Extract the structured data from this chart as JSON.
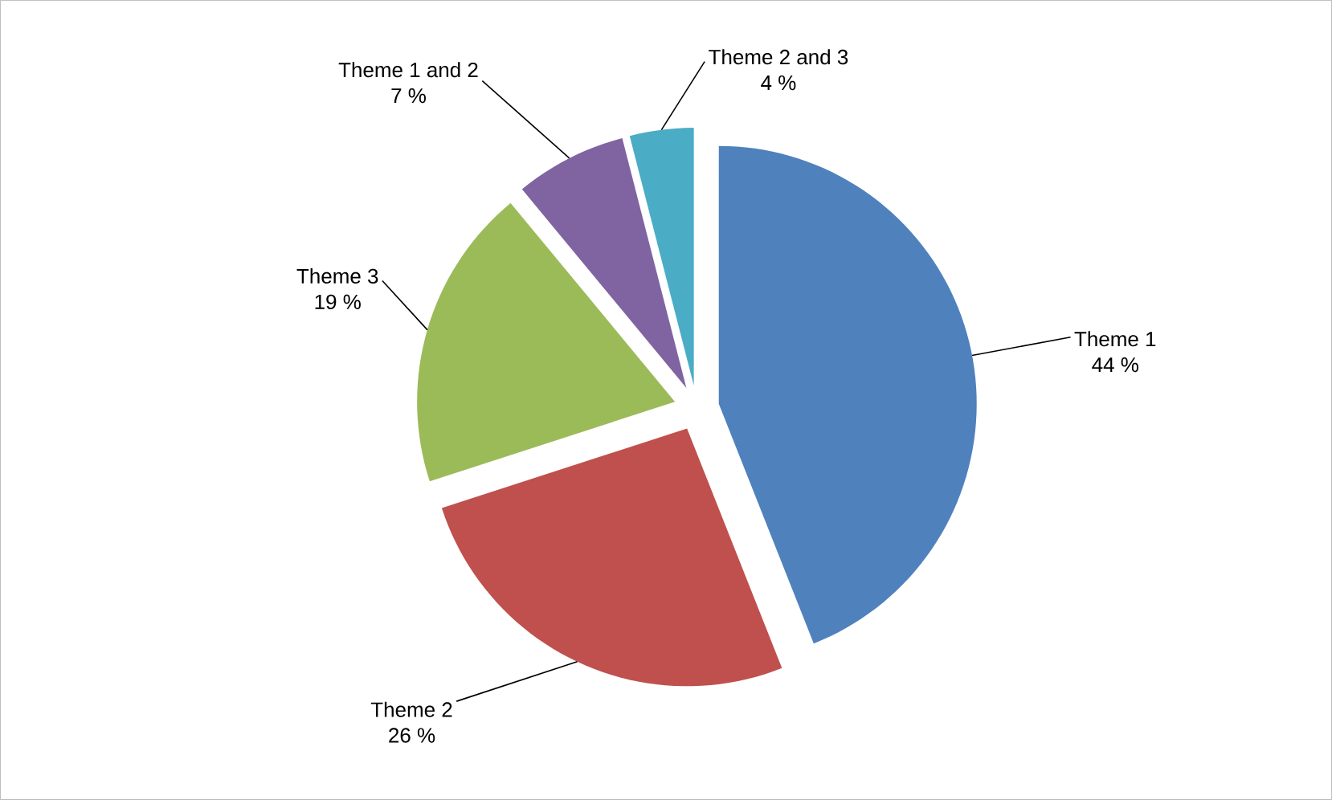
{
  "chart_data": {
    "type": "pie",
    "categories": [
      "Theme 1",
      "Theme 2",
      "Theme 3",
      "Theme 1 and 2",
      "Theme 2 and 3"
    ],
    "values": [
      44,
      26,
      19,
      7,
      4
    ],
    "value_labels": [
      "44 %",
      "26 %",
      "19 %",
      "7 %",
      "4 %"
    ],
    "colors": [
      "#4f81bd",
      "#c0504d",
      "#9bbb59",
      "#8064a2",
      "#4bacc6"
    ]
  }
}
